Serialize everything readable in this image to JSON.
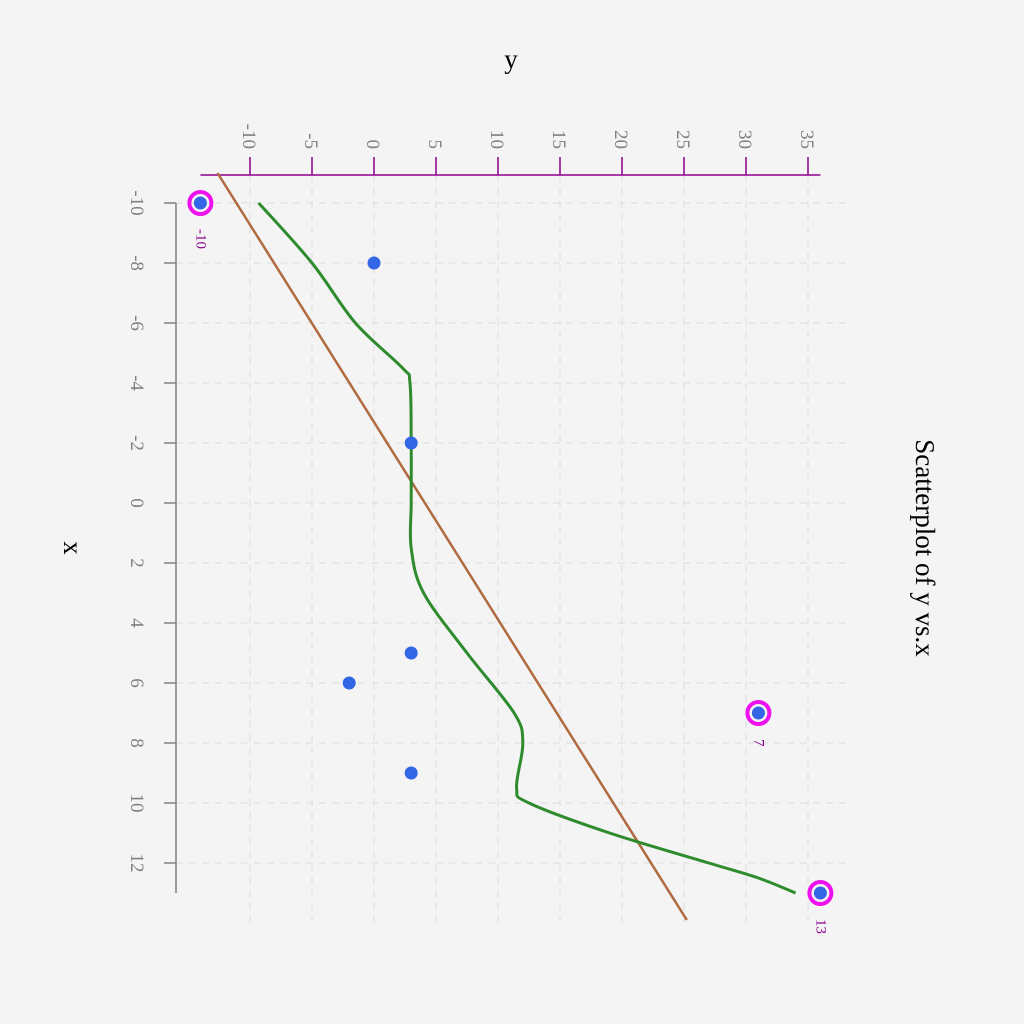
{
  "chart_data": {
    "type": "scatter",
    "title": "Scatterplot of y vs.x",
    "xlabel": "x",
    "ylabel": "y",
    "x_ticks": [
      "-10",
      "-8",
      "-6",
      "-4",
      "-2",
      "0",
      "2",
      "4",
      "6",
      "8",
      "10",
      "12"
    ],
    "y_ticks": [
      "-10",
      "-5",
      "0",
      "5",
      "10",
      "15",
      "20",
      "25",
      "30",
      "35"
    ],
    "xlim": [
      -10.9,
      13.9
    ],
    "ylim": [
      -14,
      36
    ],
    "grid": true,
    "points": [
      {
        "x": -10,
        "y": -14,
        "highlight": true,
        "label": "-10"
      },
      {
        "x": -8,
        "y": 0
      },
      {
        "x": -2,
        "y": 3
      },
      {
        "x": 5,
        "y": 3
      },
      {
        "x": 6,
        "y": -2
      },
      {
        "x": 7,
        "y": 31,
        "highlight": true,
        "label": "7"
      },
      {
        "x": 9,
        "y": 3
      },
      {
        "x": 13,
        "y": 36,
        "highlight": true,
        "label": "13"
      }
    ],
    "regression_line": {
      "intercept": 4.1,
      "slope": 1.52
    },
    "smooth_curve": [
      {
        "x": -10,
        "y": -9.3
      },
      {
        "x": -8,
        "y": -5
      },
      {
        "x": -6,
        "y": -1.5
      },
      {
        "x": -4.5,
        "y": 2.3
      },
      {
        "x": -4,
        "y": 2.9
      },
      {
        "x": -2,
        "y": 3
      },
      {
        "x": 0,
        "y": 3
      },
      {
        "x": 1.5,
        "y": 3
      },
      {
        "x": 3,
        "y": 4
      },
      {
        "x": 5,
        "y": 7.5
      },
      {
        "x": 7,
        "y": 11.3
      },
      {
        "x": 8,
        "y": 12
      },
      {
        "x": 9.5,
        "y": 11.5
      },
      {
        "x": 10,
        "y": 12.5
      },
      {
        "x": 11,
        "y": 19
      },
      {
        "x": 12,
        "y": 27
      },
      {
        "x": 12.5,
        "y": 31
      },
      {
        "x": 13,
        "y": 34
      }
    ],
    "colors": {
      "background": "#f4f4f4",
      "point": "#3366e6",
      "highlight_ring": "#ee11ee",
      "point_label": "#8b008b",
      "regression_line": "#b06a40",
      "smooth_curve": "#2e8b2e",
      "y_axis": "#8b008b",
      "x_axis": "#808080",
      "grid": "#dddddd"
    }
  }
}
